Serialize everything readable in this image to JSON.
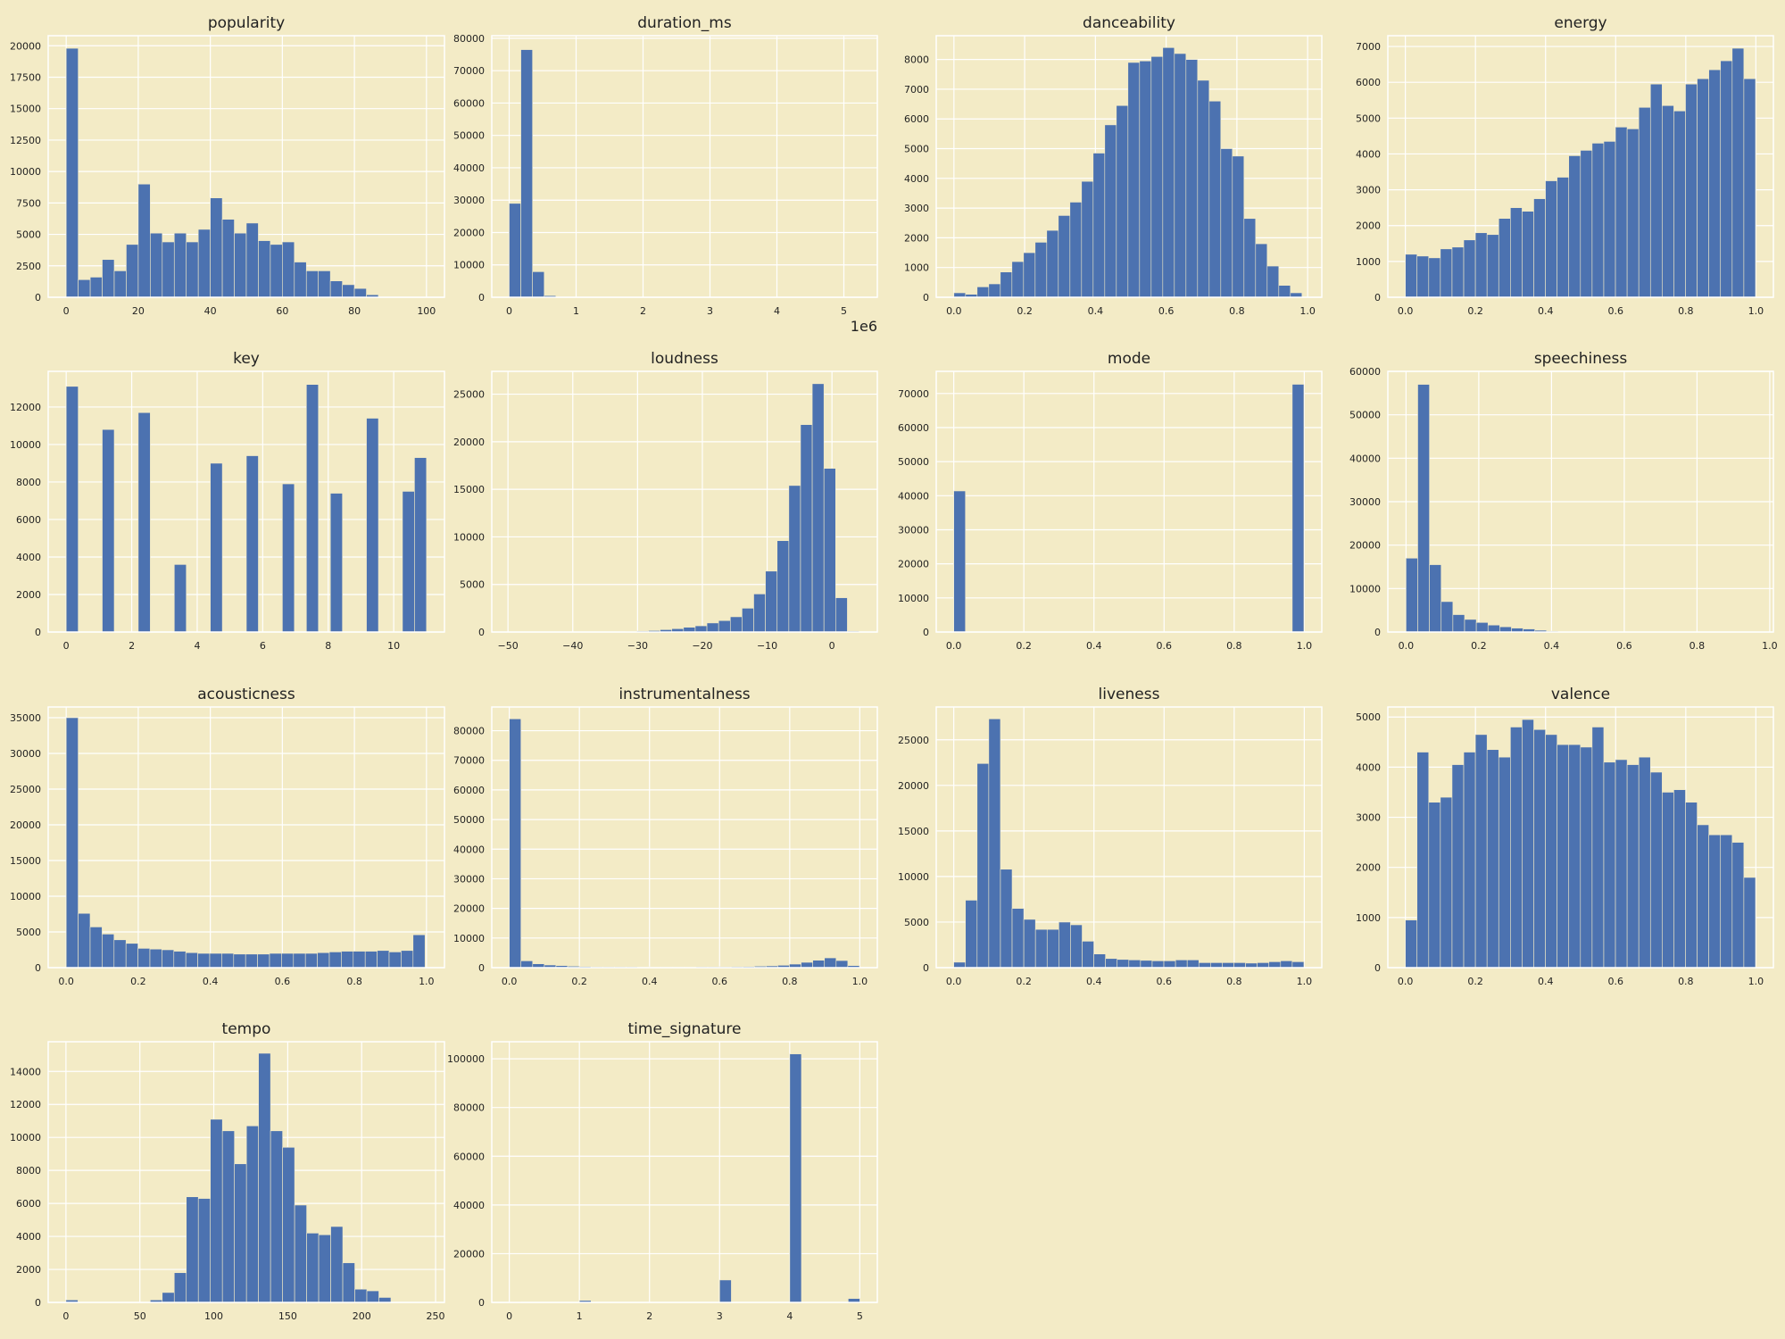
{
  "figure": {
    "background": "#f3ebc6",
    "bar_color": "#4c72b0",
    "grid_color": "#ffffff"
  },
  "chart_data": [
    {
      "type": "bar",
      "title": "popularity",
      "grid": true,
      "xlim": [
        -5,
        105
      ],
      "ylim": [
        0,
        20800
      ],
      "xticks": [
        0,
        20,
        40,
        60,
        80,
        100
      ],
      "xtick_labels": [
        "0",
        "20",
        "40",
        "60",
        "80",
        "100"
      ],
      "yticks": [
        0,
        2500,
        5000,
        7500,
        10000,
        12500,
        15000,
        17500,
        20000
      ],
      "ytick_labels": [
        "0",
        "2500",
        "5000",
        "7500",
        "10000",
        "12500",
        "15000",
        "17500",
        "20000"
      ],
      "bin_start": 0,
      "bin_width": 3.333,
      "values": [
        19800,
        1400,
        1600,
        3000,
        2100,
        4200,
        9000,
        5100,
        4400,
        5100,
        4400,
        5400,
        7900,
        6200,
        5100,
        5900,
        4500,
        4200,
        4400,
        2800,
        2100,
        2100,
        1300,
        1000,
        700,
        200,
        0,
        0,
        0,
        0
      ]
    },
    {
      "type": "bar",
      "title": "duration_ms",
      "grid": true,
      "xlim": [
        -0.26,
        5.5
      ],
      "ylim": [
        0,
        80800
      ],
      "xticks": [
        0,
        1,
        2,
        3,
        4,
        5
      ],
      "xtick_labels": [
        "0",
        "1",
        "2",
        "3",
        "4",
        "5"
      ],
      "yticks": [
        0,
        10000,
        20000,
        30000,
        40000,
        50000,
        60000,
        70000,
        80000
      ],
      "ytick_labels": [
        "0",
        "10000",
        "20000",
        "30000",
        "40000",
        "50000",
        "60000",
        "70000",
        "80000"
      ],
      "offset_label": "1e6",
      "bin_start": 0,
      "bin_width": 0.1746,
      "values": [
        29000,
        76500,
        7900,
        500,
        0,
        0,
        0,
        0,
        0,
        0,
        0,
        0,
        0,
        0,
        0,
        0,
        0,
        0,
        0,
        0,
        0,
        0,
        0,
        0,
        0,
        0,
        0,
        0,
        0,
        0
      ]
    },
    {
      "type": "bar",
      "title": "danceability",
      "grid": true,
      "xlim": [
        -0.05,
        1.04
      ],
      "ylim": [
        0,
        8800
      ],
      "xticks": [
        0,
        0.2,
        0.4,
        0.6,
        0.8,
        1.0
      ],
      "xtick_labels": [
        "0.0",
        "0.2",
        "0.4",
        "0.6",
        "0.8",
        "1.0"
      ],
      "yticks": [
        0,
        1000,
        2000,
        3000,
        4000,
        5000,
        6000,
        7000,
        8000
      ],
      "ytick_labels": [
        "0",
        "1000",
        "2000",
        "3000",
        "4000",
        "5000",
        "6000",
        "7000",
        "8000"
      ],
      "bin_start": 0,
      "bin_width": 0.0328,
      "values": [
        150,
        100,
        350,
        450,
        850,
        1200,
        1500,
        1850,
        2250,
        2750,
        3200,
        3900,
        4850,
        5800,
        6450,
        7900,
        7950,
        8100,
        8400,
        8200,
        8000,
        7300,
        6600,
        5000,
        4750,
        2650,
        1800,
        1050,
        400,
        150
      ]
    },
    {
      "type": "bar",
      "title": "energy",
      "grid": true,
      "xlim": [
        -0.05,
        1.05
      ],
      "ylim": [
        0,
        7300
      ],
      "xticks": [
        0,
        0.2,
        0.4,
        0.6,
        0.8,
        1.0
      ],
      "xtick_labels": [
        "0.0",
        "0.2",
        "0.4",
        "0.6",
        "0.8",
        "1.0"
      ],
      "yticks": [
        0,
        1000,
        2000,
        3000,
        4000,
        5000,
        6000,
        7000
      ],
      "ytick_labels": [
        "0",
        "1000",
        "2000",
        "3000",
        "4000",
        "5000",
        "6000",
        "7000"
      ],
      "bin_start": 0,
      "bin_width": 0.0333,
      "values": [
        1200,
        1150,
        1100,
        1350,
        1400,
        1600,
        1800,
        1750,
        2200,
        2500,
        2400,
        2750,
        3250,
        3350,
        3950,
        4100,
        4300,
        4350,
        4750,
        4700,
        5300,
        5950,
        5350,
        5200,
        5950,
        6100,
        6350,
        6600,
        6950,
        6100
      ]
    },
    {
      "type": "bar",
      "title": "key",
      "grid": true,
      "xlim": [
        -0.55,
        11.55
      ],
      "ylim": [
        0,
        13900
      ],
      "xticks": [
        0,
        2,
        4,
        6,
        8,
        10
      ],
      "xtick_labels": [
        "0",
        "2",
        "4",
        "6",
        "8",
        "10"
      ],
      "yticks": [
        0,
        2000,
        4000,
        6000,
        8000,
        10000,
        12000
      ],
      "ytick_labels": [
        "0",
        "2000",
        "4000",
        "6000",
        "8000",
        "10000",
        "12000"
      ],
      "bin_start": 0,
      "bin_width": 0.3667,
      "values": [
        13100,
        0,
        0,
        10800,
        0,
        0,
        11700,
        0,
        0,
        3600,
        0,
        0,
        9000,
        0,
        0,
        9400,
        0,
        0,
        7900,
        0,
        13200,
        0,
        7400,
        0,
        0,
        11400,
        0,
        0,
        7500,
        9300
      ]
    },
    {
      "type": "bar",
      "title": "loudness",
      "grid": true,
      "xlim": [
        -52.5,
        7
      ],
      "ylim": [
        0,
        27400
      ],
      "xticks": [
        -50,
        -40,
        -30,
        -20,
        -10,
        0
      ],
      "xtick_labels": [
        "−50",
        "−40",
        "−30",
        "−20",
        "−10",
        "0"
      ],
      "yticks": [
        0,
        5000,
        10000,
        15000,
        20000,
        25000
      ],
      "ytick_labels": [
        "0",
        "5000",
        "10000",
        "15000",
        "20000",
        "25000"
      ],
      "bin_start": -50,
      "bin_width": 1.806,
      "values": [
        0,
        0,
        0,
        0,
        0,
        0,
        0,
        0,
        0,
        0,
        50,
        100,
        150,
        250,
        350,
        500,
        650,
        950,
        1200,
        1600,
        2500,
        4000,
        6400,
        9600,
        15400,
        21800,
        26100,
        17200,
        3600,
        100
      ]
    },
    {
      "type": "bar",
      "title": "mode",
      "grid": true,
      "xlim": [
        -0.05,
        1.05
      ],
      "ylim": [
        0,
        76500
      ],
      "xticks": [
        0,
        0.2,
        0.4,
        0.6,
        0.8,
        1.0
      ],
      "xtick_labels": [
        "0.0",
        "0.2",
        "0.4",
        "0.6",
        "0.8",
        "1.0"
      ],
      "yticks": [
        0,
        10000,
        20000,
        30000,
        40000,
        50000,
        60000,
        70000
      ],
      "ytick_labels": [
        "0",
        "10000",
        "20000",
        "30000",
        "40000",
        "50000",
        "60000",
        "70000"
      ],
      "bin_start": 0,
      "bin_width": 0.0333,
      "values": [
        41400,
        0,
        0,
        0,
        0,
        0,
        0,
        0,
        0,
        0,
        0,
        0,
        0,
        0,
        0,
        0,
        0,
        0,
        0,
        0,
        0,
        0,
        0,
        0,
        0,
        0,
        0,
        0,
        0,
        72700
      ]
    },
    {
      "type": "bar",
      "title": "speechiness",
      "grid": true,
      "xlim": [
        -0.05,
        1.01
      ],
      "ylim": [
        0,
        60000
      ],
      "xticks": [
        0,
        0.2,
        0.4,
        0.6,
        0.8,
        1.0
      ],
      "xtick_labels": [
        "0.0",
        "0.2",
        "0.4",
        "0.6",
        "0.8",
        "1.0"
      ],
      "yticks": [
        0,
        10000,
        20000,
        30000,
        40000,
        50000,
        60000
      ],
      "ytick_labels": [
        "0",
        "10000",
        "20000",
        "30000",
        "40000",
        "50000",
        "60000"
      ],
      "bin_start": 0,
      "bin_width": 0.0322,
      "values": [
        17000,
        57000,
        15500,
        7000,
        4000,
        2900,
        2200,
        1600,
        1200,
        900,
        700,
        400,
        200,
        100,
        50,
        50,
        0,
        0,
        0,
        0,
        0,
        0,
        0,
        0,
        0,
        0,
        0,
        0,
        0,
        0
      ]
    },
    {
      "type": "bar",
      "title": "acousticness",
      "grid": true,
      "xlim": [
        -0.05,
        1.05
      ],
      "ylim": [
        0,
        36500
      ],
      "xticks": [
        0,
        0.2,
        0.4,
        0.6,
        0.8,
        1.0
      ],
      "xtick_labels": [
        "0.0",
        "0.2",
        "0.4",
        "0.6",
        "0.8",
        "1.0"
      ],
      "yticks": [
        0,
        5000,
        10000,
        15000,
        20000,
        25000,
        30000,
        35000
      ],
      "ytick_labels": [
        "0",
        "5000",
        "10000",
        "15000",
        "20000",
        "25000",
        "30000",
        "35000"
      ],
      "bin_start": 0,
      "bin_width": 0.0332,
      "values": [
        35000,
        7600,
        5700,
        4700,
        3900,
        3400,
        2700,
        2600,
        2500,
        2300,
        2100,
        2000,
        2000,
        2000,
        1900,
        1900,
        1900,
        2000,
        2000,
        2000,
        2000,
        2100,
        2200,
        2300,
        2300,
        2300,
        2400,
        2200,
        2400,
        4600
      ]
    },
    {
      "type": "bar",
      "title": "instrumentalness",
      "grid": true,
      "xlim": [
        -0.05,
        1.05
      ],
      "ylim": [
        0,
        88000
      ],
      "xticks": [
        0,
        0.2,
        0.4,
        0.6,
        0.8,
        1.0
      ],
      "xtick_labels": [
        "0.0",
        "0.2",
        "0.4",
        "0.6",
        "0.8",
        "1.0"
      ],
      "yticks": [
        0,
        10000,
        20000,
        30000,
        40000,
        50000,
        60000,
        70000,
        80000
      ],
      "ytick_labels": [
        "0",
        "10000",
        "20000",
        "30000",
        "40000",
        "50000",
        "60000",
        "70000",
        "80000"
      ],
      "bin_start": 0,
      "bin_width": 0.0333,
      "values": [
        84000,
        2300,
        1300,
        900,
        700,
        500,
        400,
        300,
        300,
        300,
        300,
        250,
        250,
        250,
        250,
        250,
        300,
        300,
        300,
        350,
        400,
        500,
        600,
        800,
        1200,
        1800,
        2500,
        3300,
        2400,
        700
      ]
    },
    {
      "type": "bar",
      "title": "liveness",
      "grid": true,
      "xlim": [
        -0.05,
        1.05
      ],
      "ylim": [
        0,
        28600
      ],
      "xticks": [
        0,
        0.2,
        0.4,
        0.6,
        0.8,
        1.0
      ],
      "xtick_labels": [
        "0.0",
        "0.2",
        "0.4",
        "0.6",
        "0.8",
        "1.0"
      ],
      "yticks": [
        0,
        5000,
        10000,
        15000,
        20000,
        25000
      ],
      "ytick_labels": [
        "0",
        "5000",
        "10000",
        "15000",
        "20000",
        "25000"
      ],
      "bin_start": 0,
      "bin_width": 0.0333,
      "values": [
        600,
        7400,
        22400,
        27300,
        10800,
        6500,
        5300,
        4200,
        4200,
        5000,
        4700,
        2900,
        1500,
        1000,
        900,
        850,
        800,
        750,
        750,
        850,
        850,
        550,
        550,
        550,
        550,
        500,
        550,
        650,
        750,
        650
      ]
    },
    {
      "type": "bar",
      "title": "valence",
      "grid": true,
      "xlim": [
        -0.05,
        1.05
      ],
      "ylim": [
        0,
        5200
      ],
      "xticks": [
        0,
        0.2,
        0.4,
        0.6,
        0.8,
        1.0
      ],
      "xtick_labels": [
        "0.0",
        "0.2",
        "0.4",
        "0.6",
        "0.8",
        "1.0"
      ],
      "yticks": [
        0,
        1000,
        2000,
        3000,
        4000,
        5000
      ],
      "ytick_labels": [
        "0",
        "1000",
        "2000",
        "3000",
        "4000",
        "5000"
      ],
      "bin_start": 0,
      "bin_width": 0.0333,
      "values": [
        950,
        4300,
        3300,
        3400,
        4050,
        4300,
        4650,
        4350,
        4200,
        4800,
        4950,
        4750,
        4650,
        4450,
        4450,
        4400,
        4800,
        4100,
        4150,
        4050,
        4200,
        3900,
        3500,
        3550,
        3300,
        2850,
        2650,
        2650,
        2500,
        1800
      ]
    },
    {
      "type": "bar",
      "title": "tempo",
      "grid": true,
      "xlim": [
        -12,
        256
      ],
      "ylim": [
        0,
        15800
      ],
      "xticks": [
        0,
        50,
        100,
        150,
        200,
        250
      ],
      "xtick_labels": [
        "0",
        "50",
        "100",
        "150",
        "200",
        "250"
      ],
      "yticks": [
        0,
        2000,
        4000,
        6000,
        8000,
        10000,
        12000,
        14000
      ],
      "ytick_labels": [
        "0",
        "2000",
        "4000",
        "6000",
        "8000",
        "10000",
        "12000",
        "14000"
      ],
      "bin_start": 0,
      "bin_width": 8.14,
      "values": [
        150,
        0,
        0,
        0,
        0,
        0,
        0,
        150,
        600,
        1800,
        6400,
        6300,
        11100,
        10400,
        8400,
        10700,
        15100,
        10400,
        9400,
        5900,
        4200,
        4100,
        4600,
        2400,
        800,
        700,
        300,
        0,
        0,
        0
      ]
    },
    {
      "type": "bar",
      "title": "time_signature",
      "grid": true,
      "xlim": [
        -0.25,
        5.25
      ],
      "ylim": [
        0,
        107000
      ],
      "xticks": [
        0,
        1,
        2,
        3,
        4,
        5
      ],
      "xtick_labels": [
        "0",
        "1",
        "2",
        "3",
        "4",
        "5"
      ],
      "yticks": [
        0,
        20000,
        40000,
        60000,
        80000,
        100000
      ],
      "ytick_labels": [
        "0",
        "20000",
        "40000",
        "60000",
        "80000",
        "100000"
      ],
      "bin_start": 0,
      "bin_width": 0.1667,
      "values": [
        150,
        0,
        0,
        0,
        0,
        0,
        800,
        0,
        0,
        0,
        0,
        0,
        0,
        0,
        0,
        0,
        0,
        0,
        9200,
        0,
        0,
        0,
        0,
        0,
        102000,
        0,
        0,
        0,
        0,
        1600
      ]
    }
  ]
}
